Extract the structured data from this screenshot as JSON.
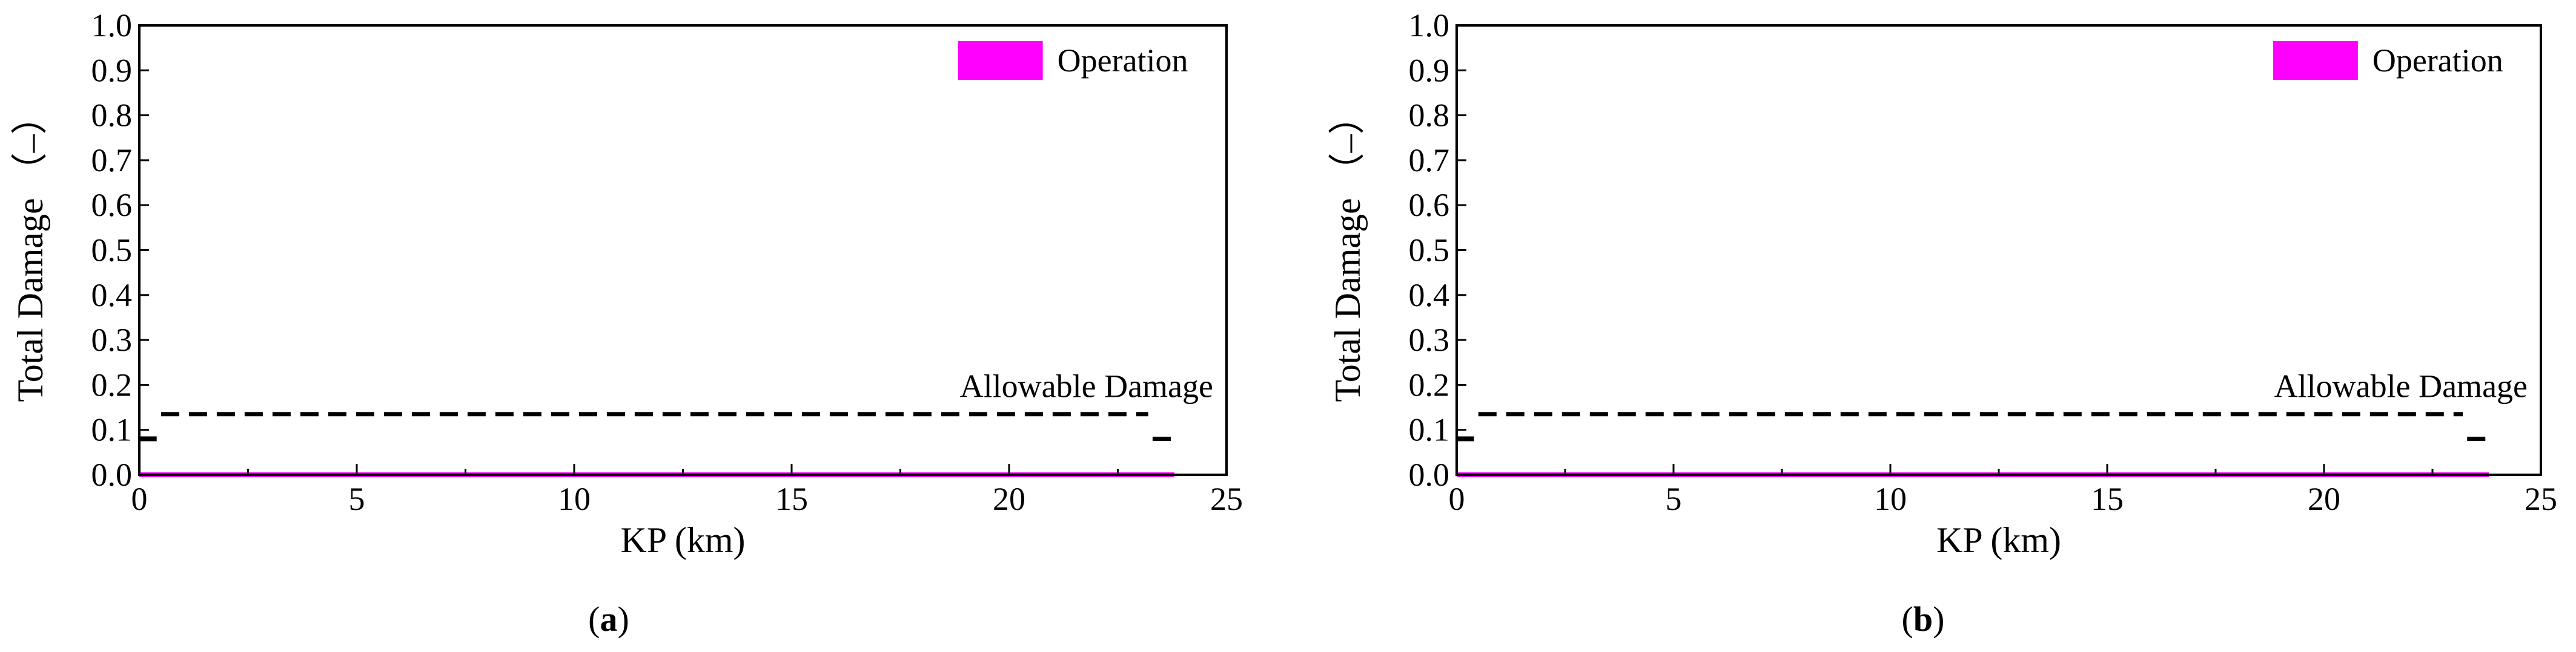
{
  "figure": {
    "panels": [
      {
        "caption_open": "(",
        "caption_letter": "a",
        "caption_close": ")"
      },
      {
        "caption_open": "(",
        "caption_letter": "b",
        "caption_close": ")"
      }
    ]
  },
  "chart_data": [
    {
      "type": "line",
      "xlabel": "KP (km)",
      "ylabel": "Total Damage （–）",
      "xlim": [
        0,
        25
      ],
      "ylim": [
        0,
        1.0
      ],
      "x_ticks": [
        "0",
        "5",
        "10",
        "15",
        "20",
        "25"
      ],
      "y_ticks": [
        "0.0",
        "0.1",
        "0.2",
        "0.3",
        "0.4",
        "0.5",
        "0.6",
        "0.7",
        "0.8",
        "0.9",
        "1.0"
      ],
      "grid": false,
      "legend_position": "top-right",
      "annotation": "Allowable Damage",
      "series": [
        {
          "name": "Operation",
          "color": "#ff00ff",
          "style": "solid",
          "x": [
            0,
            23.8
          ],
          "y": [
            0,
            0
          ]
        },
        {
          "style": "dashed",
          "color": "#000000",
          "x": [
            0.5,
            23.2
          ],
          "y": [
            0.135,
            0.135
          ]
        },
        {
          "style": "dashed",
          "color": "#000000",
          "x": [
            23.3,
            23.8
          ],
          "y": [
            0.08,
            0.08
          ]
        },
        {
          "style": "solid",
          "color": "#000000",
          "x": [
            0,
            0.4
          ],
          "y": [
            0.08,
            0.08
          ]
        }
      ]
    },
    {
      "type": "line",
      "xlabel": "KP (km)",
      "ylabel": "Total Damage （–）",
      "xlim": [
        0,
        25
      ],
      "ylim": [
        0,
        1.0
      ],
      "x_ticks": [
        "0",
        "5",
        "10",
        "15",
        "20",
        "25"
      ],
      "y_ticks": [
        "0.0",
        "0.1",
        "0.2",
        "0.3",
        "0.4",
        "0.5",
        "0.6",
        "0.7",
        "0.8",
        "0.9",
        "1.0"
      ],
      "grid": false,
      "legend_position": "top-right",
      "annotation": "Allowable Damage",
      "series": [
        {
          "name": "Operation",
          "color": "#ff00ff",
          "style": "solid",
          "x": [
            0,
            23.8
          ],
          "y": [
            0,
            0
          ]
        },
        {
          "style": "dashed",
          "color": "#000000",
          "x": [
            0.5,
            23.2
          ],
          "y": [
            0.135,
            0.135
          ]
        },
        {
          "style": "dashed",
          "color": "#000000",
          "x": [
            23.3,
            23.8
          ],
          "y": [
            0.08,
            0.08
          ]
        },
        {
          "style": "solid",
          "color": "#000000",
          "x": [
            0,
            0.4
          ],
          "y": [
            0.08,
            0.08
          ]
        }
      ]
    }
  ]
}
